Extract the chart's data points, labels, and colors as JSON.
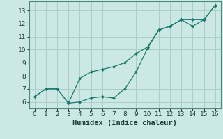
{
  "title": "",
  "xlabel": "Humidex (Indice chaleur)",
  "ylabel": "",
  "background_color": "#cce8e4",
  "grid_color": "#aaceca",
  "line_color": "#1a7a6e",
  "marker_color": "#1a7a6e",
  "xlim": [
    -0.5,
    16.5
  ],
  "ylim": [
    5.5,
    13.7
  ],
  "xticks": [
    0,
    1,
    2,
    3,
    4,
    5,
    6,
    7,
    8,
    9,
    10,
    11,
    12,
    13,
    14,
    15,
    16
  ],
  "yticks": [
    6,
    7,
    8,
    9,
    10,
    11,
    12,
    13
  ],
  "series1_x": [
    0,
    1,
    2,
    3,
    4,
    5,
    6,
    7,
    8,
    9,
    10,
    11,
    12,
    13,
    14,
    15,
    16
  ],
  "series1_y": [
    6.4,
    7.0,
    7.0,
    5.9,
    6.0,
    6.3,
    6.4,
    6.3,
    7.0,
    8.3,
    10.1,
    11.5,
    11.8,
    12.3,
    11.8,
    12.3,
    13.4
  ],
  "series2_x": [
    0,
    1,
    2,
    3,
    4,
    5,
    6,
    7,
    8,
    9,
    10,
    11,
    12,
    13,
    14,
    15,
    16
  ],
  "series2_y": [
    6.4,
    7.0,
    7.0,
    5.9,
    7.8,
    8.3,
    8.5,
    8.7,
    9.0,
    9.7,
    10.2,
    11.5,
    11.8,
    12.3,
    12.3,
    12.3,
    13.4
  ],
  "tick_fontsize": 6.5,
  "xlabel_fontsize": 7.5,
  "spine_color": "#4a8a80",
  "tick_color": "#1a3a3a"
}
